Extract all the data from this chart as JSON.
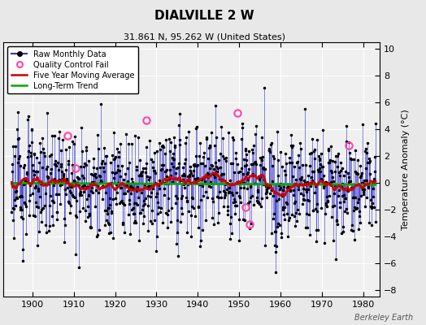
{
  "title": "DIALVILLE 2 W",
  "subtitle": "31.861 N, 95.262 W (United States)",
  "ylabel": "Temperature Anomaly (°C)",
  "credit": "Berkeley Earth",
  "start_year": 1895,
  "end_year": 1983,
  "ylim": [
    -8.5,
    10.5
  ],
  "xlim": [
    1893,
    1984
  ],
  "xticks": [
    1900,
    1910,
    1920,
    1930,
    1940,
    1950,
    1960,
    1970,
    1980
  ],
  "yticks": [
    -8,
    -6,
    -4,
    -2,
    0,
    2,
    4,
    6,
    8,
    10
  ],
  "bg_color": "#e8e8e8",
  "plot_bg": "#f0f0f0",
  "raw_color": "#3333cc",
  "raw_dot_color": "#000000",
  "ma_color": "#cc0000",
  "trend_color": "#00aa00",
  "qc_color": "#ff44aa",
  "title_fontsize": 11,
  "subtitle_fontsize": 8,
  "legend_fontsize": 7,
  "tick_labelsize": 8,
  "ylabel_fontsize": 8,
  "credit_fontsize": 7,
  "qc_times": [
    1908.5,
    1910.5,
    1927.5,
    1949.5,
    1951.5,
    1952.5,
    1976.5
  ],
  "qc_values": [
    3.5,
    1.1,
    4.7,
    5.2,
    -1.8,
    -3.1,
    2.8
  ]
}
